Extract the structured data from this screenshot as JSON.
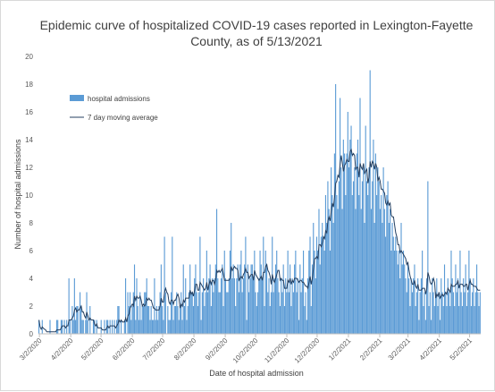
{
  "chart_data": {
    "type": "bar",
    "title_lines": [
      "Epidemic curve of hospitalized COVID-19 cases reported in Lexington-Fayette",
      "County, as of 5/13/2021"
    ],
    "xlabel": "Date of hospital admission",
    "ylabel": "Number of hospital admissions",
    "ylim": [
      0,
      20
    ],
    "y_ticks": [
      0,
      2,
      4,
      6,
      8,
      10,
      12,
      14,
      16,
      18,
      20
    ],
    "grid": false,
    "legend_position": "upper-left",
    "x_start": "2020-03-01",
    "x_end": "2021-05-13",
    "x_tick_labels": [
      "3/2/2020",
      "4/2/2020",
      "5/2/2020",
      "6/2/2020",
      "7/2/2020",
      "8/2/2020",
      "9/2/2020",
      "10/2/2020",
      "11/2/2020",
      "12/2/2020",
      "1/2/2021",
      "2/2/2021",
      "3/2/2021",
      "4/2/2021",
      "5/2/2021"
    ],
    "series": [
      {
        "name": "hospital admissions",
        "type": "bar",
        "color": "#5b9bd5",
        "values": [
          1,
          0,
          0,
          1,
          0,
          0,
          0,
          0,
          0,
          0,
          1,
          0,
          0,
          0,
          0,
          0,
          1,
          1,
          0,
          0,
          1,
          1,
          0,
          1,
          0,
          1,
          0,
          4,
          1,
          0,
          2,
          1,
          4,
          1,
          2,
          2,
          0,
          3,
          2,
          1,
          1,
          0,
          1,
          3,
          1,
          0,
          2,
          0,
          0,
          1,
          1,
          0,
          1,
          0,
          0,
          0,
          1,
          0,
          0,
          1,
          0,
          1,
          1,
          0,
          1,
          0,
          1,
          0,
          1,
          0,
          1,
          2,
          2,
          0,
          1,
          0,
          0,
          1,
          4,
          0,
          3,
          2,
          3,
          1,
          2,
          3,
          5,
          1,
          4,
          2,
          1,
          3,
          1,
          2,
          2,
          3,
          3,
          4,
          2,
          2,
          1,
          2,
          1,
          1,
          4,
          1,
          2,
          1,
          2,
          3,
          5,
          2,
          1,
          7,
          3,
          0,
          2,
          1,
          1,
          3,
          7,
          1,
          2,
          2,
          3,
          2,
          1,
          2,
          3,
          1,
          5,
          2,
          4,
          1,
          2,
          3,
          5,
          3,
          3,
          2,
          4,
          5,
          3,
          2,
          3,
          7,
          1,
          3,
          4,
          2,
          3,
          6,
          3,
          4,
          5,
          2,
          4,
          3,
          4,
          5,
          9,
          4,
          3,
          3,
          4,
          5,
          2,
          6,
          4,
          3,
          3,
          4,
          6,
          8,
          4,
          5,
          4,
          2,
          4,
          5,
          3,
          5,
          6,
          3,
          4,
          5,
          7,
          1,
          5,
          3,
          4,
          5,
          5,
          4,
          6,
          3,
          2,
          3,
          4,
          6,
          5,
          4,
          7,
          2,
          6,
          5,
          3,
          4,
          2,
          3,
          7,
          3,
          4,
          5,
          6,
          4,
          3,
          2,
          4,
          3,
          5,
          2,
          4,
          3,
          6,
          3,
          5,
          2,
          4,
          3,
          5,
          6,
          3,
          4,
          1,
          5,
          3,
          4,
          6,
          2,
          3,
          1,
          4,
          6,
          7,
          2,
          5,
          8,
          6,
          4,
          7,
          6,
          9,
          5,
          7,
          8,
          7,
          6,
          10,
          8,
          11,
          9,
          6,
          12,
          10,
          8,
          13,
          18,
          10,
          9,
          11,
          17,
          12,
          9,
          14,
          13,
          10,
          13,
          16,
          12,
          14,
          15,
          10,
          11,
          12,
          9,
          13,
          14,
          10,
          17,
          9,
          11,
          12,
          8,
          15,
          11,
          10,
          12,
          19,
          9,
          11,
          14,
          8,
          13,
          10,
          12,
          11,
          9,
          10,
          8,
          12,
          9,
          7,
          10,
          11,
          8,
          9,
          6,
          8,
          7,
          6,
          7,
          6,
          5,
          6,
          4,
          8,
          5,
          6,
          5,
          4,
          3,
          5,
          4,
          2,
          4,
          3,
          4,
          5,
          2,
          3,
          4,
          1,
          3,
          4,
          6,
          2,
          3,
          1,
          4,
          11,
          2,
          3,
          1,
          4,
          3,
          2,
          3,
          4,
          2,
          3,
          1,
          4,
          3,
          2,
          5,
          3,
          2,
          4,
          3,
          2,
          6,
          4,
          3,
          2,
          5,
          3,
          4,
          2,
          6,
          3,
          2,
          4,
          3,
          5,
          2,
          3,
          6,
          4,
          2,
          3,
          4,
          2,
          3,
          5,
          3,
          2,
          3
        ]
      },
      {
        "name": "7 day moving average",
        "type": "line",
        "color": "#243f60",
        "window": 7
      }
    ]
  }
}
